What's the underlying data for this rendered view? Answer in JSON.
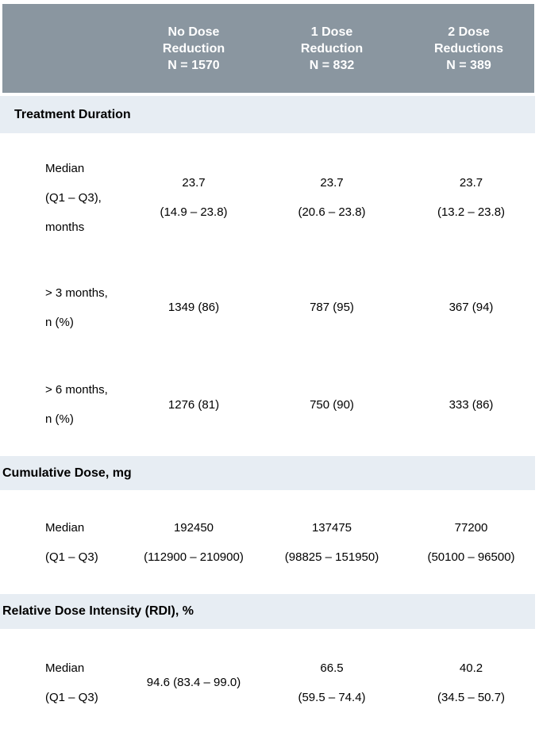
{
  "colors": {
    "header_bg": "#8A96A0",
    "header_text": "#FFFFFF",
    "section_bg": "#E7EDF3",
    "body_text": "#000000"
  },
  "columns": [
    {
      "lines": [
        "No Dose",
        "Reduction",
        "N = 1570"
      ]
    },
    {
      "lines": [
        "1 Dose",
        "Reduction",
        "N = 832"
      ]
    },
    {
      "lines": [
        "2 Dose",
        "Reductions",
        "N = 389"
      ]
    }
  ],
  "sections": [
    {
      "title": "Treatment Duration",
      "rows": [
        {
          "label_lines": [
            "Median",
            "(Q1 – Q3),",
            "months"
          ],
          "values": [
            [
              "23.7",
              "(14.9 – 23.8)"
            ],
            [
              "23.7",
              "(20.6 – 23.8)"
            ],
            [
              "23.7",
              "(13.2 – 23.8)"
            ]
          ]
        },
        {
          "label_lines": [
            "> 3 months,",
            "n (%)"
          ],
          "values": [
            [
              "1349 (86)"
            ],
            [
              "787 (95)"
            ],
            [
              "367 (94)"
            ]
          ]
        },
        {
          "label_lines": [
            "> 6 months,",
            "n (%)"
          ],
          "values": [
            [
              "1276 (81)"
            ],
            [
              "750 (90)"
            ],
            [
              "333 (86)"
            ]
          ]
        }
      ]
    },
    {
      "title": "Cumulative Dose, mg",
      "rows": [
        {
          "label_lines": [
            "Median",
            "(Q1 – Q3)"
          ],
          "values": [
            [
              "192450",
              "(112900 – 210900)"
            ],
            [
              "137475",
              "(98825 – 151950)"
            ],
            [
              "77200",
              "(50100 – 96500)"
            ]
          ]
        }
      ]
    },
    {
      "title": "Relative Dose Intensity (RDI), %",
      "rows": [
        {
          "label_lines": [
            "Median",
            "(Q1 – Q3)"
          ],
          "values": [
            [
              "94.6 (83.4 – 99.0)"
            ],
            [
              "66.5",
              "(59.5 – 74.4)"
            ],
            [
              "40.2",
              "(34.5 – 50.7)"
            ]
          ]
        }
      ]
    }
  ]
}
